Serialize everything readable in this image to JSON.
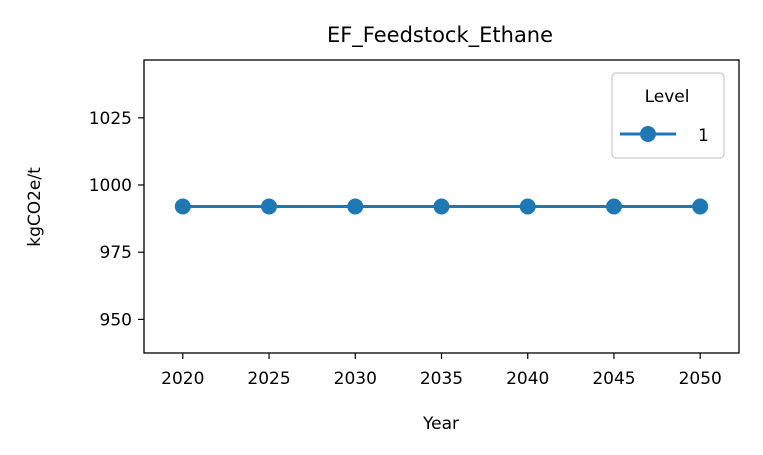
{
  "chart_data": {
    "type": "line",
    "title": "EF_Feedstock_Ethane",
    "xlabel": "Year",
    "ylabel": "kgCO2e/t",
    "x": [
      2020,
      2025,
      2030,
      2035,
      2040,
      2045,
      2050
    ],
    "xticks": [
      "2020",
      "2025",
      "2030",
      "2035",
      "2040",
      "2045",
      "2050"
    ],
    "yticks": [
      "950",
      "975",
      "1000",
      "1025"
    ],
    "ytick_values": [
      950,
      975,
      1000,
      1025
    ],
    "xlim": [
      2017.75,
      2052.25
    ],
    "ylim": [
      937.5,
      1046.5
    ],
    "grid": false,
    "legend": {
      "title": "Level",
      "placement": "top-right"
    },
    "series": [
      {
        "name": "1",
        "color": "#1f77b4",
        "marker": "circle",
        "values": [
          992,
          992,
          992,
          992,
          992,
          992,
          992
        ]
      }
    ]
  }
}
